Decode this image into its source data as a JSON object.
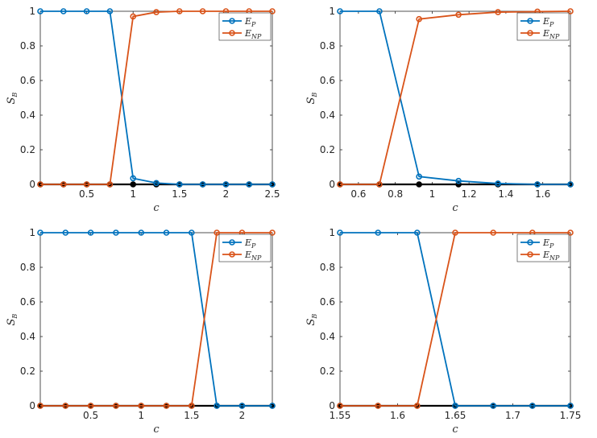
{
  "colors": {
    "EP": "#0072BD",
    "ENP": "#D95319",
    "zero": "#000000"
  },
  "chart_data": [
    {
      "type": "line",
      "xlabel": "c",
      "ylabel": "S_B",
      "xlim": [
        0,
        2.5
      ],
      "ylim": [
        0,
        1
      ],
      "xticks": [
        "0.5",
        "1",
        "1.5",
        "2",
        "2.5"
      ],
      "yticks": [
        "0",
        "0.2",
        "0.4",
        "0.6",
        "0.8",
        "1"
      ],
      "legend_position": "top-right",
      "x": [
        0,
        0.25,
        0.5,
        0.75,
        1.0,
        1.25,
        1.5,
        1.75,
        2.0,
        2.25,
        2.5
      ],
      "series": [
        {
          "name": "E_P",
          "values": [
            1,
            1,
            1,
            1,
            0.035,
            0.008,
            0,
            0,
            0,
            0,
            0
          ]
        },
        {
          "name": "E_NP",
          "values": [
            0,
            0,
            0,
            0,
            0.97,
            0.995,
            1,
            1,
            1,
            1,
            1
          ]
        },
        {
          "values": [
            0,
            0,
            0,
            0,
            0,
            0,
            0,
            0,
            0,
            0,
            0
          ]
        }
      ]
    },
    {
      "type": "line",
      "xlabel": "c",
      "ylabel": "S_B",
      "xlim": [
        0.5,
        1.75
      ],
      "ylim": [
        0,
        1
      ],
      "xticks": [
        "0.6",
        "0.8",
        "1",
        "1.2",
        "1.4",
        "1.6"
      ],
      "yticks": [
        "0",
        "0.2",
        "0.4",
        "0.6",
        "0.8",
        "1"
      ],
      "legend_position": "top-right",
      "x": [
        0.5,
        0.714,
        0.929,
        1.143,
        1.357,
        1.571,
        1.75
      ],
      "series": [
        {
          "name": "E_P",
          "values": [
            1,
            1,
            0.045,
            0.02,
            0.005,
            0,
            0
          ]
        },
        {
          "name": "E_NP",
          "values": [
            0,
            0,
            0.955,
            0.98,
            0.995,
            0.998,
            1
          ]
        },
        {
          "values": [
            0,
            0,
            0,
            0,
            0,
            0,
            0
          ]
        }
      ]
    },
    {
      "type": "line",
      "xlabel": "c",
      "ylabel": "S_B",
      "xlim": [
        0,
        2.3
      ],
      "ylim": [
        0,
        1
      ],
      "xticks": [
        "0.5",
        "1",
        "1.5",
        "2"
      ],
      "yticks": [
        "0",
        "0.2",
        "0.4",
        "0.6",
        "0.8",
        "1"
      ],
      "legend_position": "top-right",
      "x": [
        0,
        0.25,
        0.5,
        0.75,
        1.0,
        1.25,
        1.5,
        1.75,
        2.0,
        2.3
      ],
      "series": [
        {
          "name": "E_P",
          "values": [
            1,
            1,
            1,
            1,
            1,
            1,
            1,
            0,
            0,
            0
          ]
        },
        {
          "name": "E_NP",
          "values": [
            0,
            0,
            0,
            0,
            0,
            0,
            0,
            1,
            1,
            1
          ]
        },
        {
          "values": [
            0,
            0,
            0,
            0,
            0,
            0,
            0,
            0,
            0,
            0
          ]
        }
      ]
    },
    {
      "type": "line",
      "xlabel": "c",
      "ylabel": "S_B",
      "xlim": [
        1.55,
        1.75
      ],
      "ylim": [
        0,
        1
      ],
      "xticks": [
        "1.55",
        "1.6",
        "1.65",
        "1.7",
        "1.75"
      ],
      "yticks": [
        "0",
        "0.2",
        "0.4",
        "0.6",
        "0.8",
        "1"
      ],
      "legend_position": "top-right",
      "x": [
        1.55,
        1.583,
        1.617,
        1.65,
        1.683,
        1.717,
        1.75
      ],
      "series": [
        {
          "name": "E_P",
          "values": [
            1,
            1,
            1,
            0,
            0,
            0,
            0
          ]
        },
        {
          "name": "E_NP",
          "values": [
            0,
            0,
            0,
            1,
            1,
            1,
            1
          ]
        },
        {
          "values": [
            0,
            0,
            0,
            0,
            0,
            0,
            0
          ]
        }
      ]
    }
  ]
}
